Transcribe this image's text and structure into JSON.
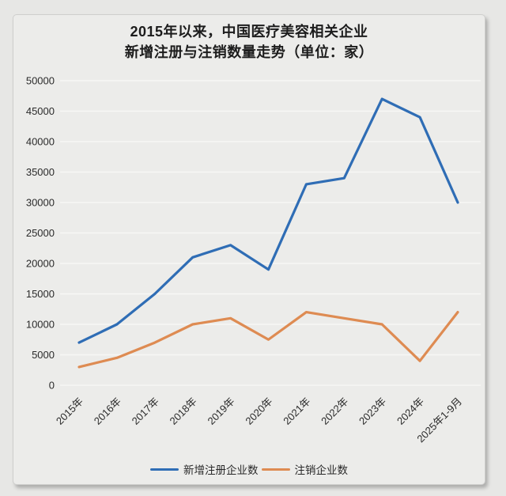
{
  "title": {
    "line1": "2015年以来，中国医疗美容相关企业",
    "line2": "新增注册与注销数量走势（单位：家）"
  },
  "chart_data": {
    "type": "line",
    "title": "2015年以来，中国医疗美容相关企业新增注册与注销数量走势（单位：家）",
    "categories": [
      "2015年",
      "2016年",
      "2017年",
      "2018年",
      "2019年",
      "2020年",
      "2021年",
      "2022年",
      "2023年",
      "2024年",
      "2025年1-9月"
    ],
    "series": [
      {
        "name": "新增注册企业数",
        "color": "#2F6DB5",
        "values": [
          7000,
          10000,
          15000,
          21000,
          23000,
          19000,
          33000,
          34000,
          47000,
          44000,
          30000
        ]
      },
      {
        "name": "注销企业数",
        "color": "#DE8B52",
        "values": [
          3000,
          4500,
          7000,
          10000,
          11000,
          7500,
          12000,
          11000,
          10000,
          4000,
          12000
        ]
      }
    ],
    "ylim": [
      0,
      50000
    ],
    "ytick_step": 5000,
    "xlabel": "",
    "ylabel": "",
    "grid": true,
    "legend_position": "bottom"
  },
  "style": {
    "grid_color": "#f7f7f5",
    "tick_label_color": "#2a2a2a",
    "line_width": 3.2
  }
}
